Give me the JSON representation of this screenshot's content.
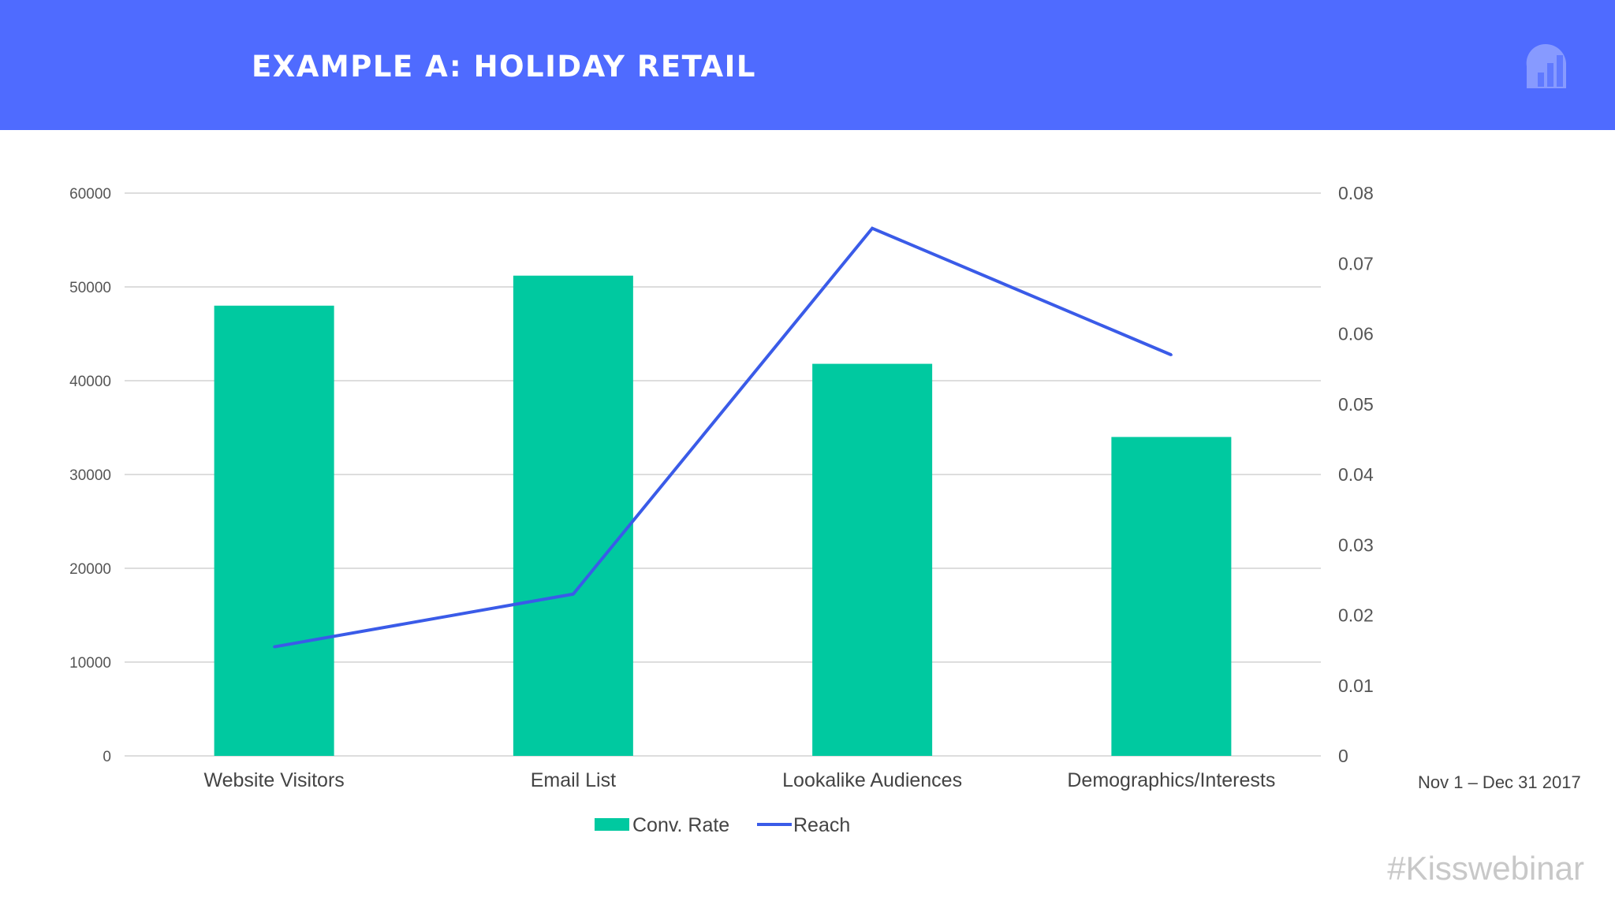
{
  "header": {
    "title": "EXAMPLE A: HOLIDAY RETAIL",
    "logo_icon": "bar-chart-cloud-icon"
  },
  "footer": {
    "date_range": "Nov 1 – Dec 31 2017",
    "hashtag": "#Kisswebinar"
  },
  "colors": {
    "header_bg": "#4f6bff",
    "bar": "#00c9a0",
    "line": "#3a5be8",
    "grid": "#dddddd"
  },
  "chart_data": {
    "type": "bar",
    "categories": [
      "Website Visitors",
      "Email List",
      "Lookalike Audiences",
      "Demographics/Interests"
    ],
    "series": [
      {
        "name": "Conv. Rate",
        "type": "bar",
        "axis": "left",
        "values": [
          48000,
          51200,
          41800,
          34000
        ]
      },
      {
        "name": "Reach",
        "type": "line",
        "axis": "right",
        "values": [
          0.0155,
          0.023,
          0.075,
          0.057
        ]
      }
    ],
    "y_left": {
      "ylim": [
        0,
        60000
      ],
      "ticks": [
        "0",
        "10000",
        "20000",
        "30000",
        "40000",
        "50000",
        "60000"
      ]
    },
    "y_right": {
      "ylim": [
        0,
        0.08
      ],
      "ticks": [
        "0",
        "0.01",
        "0.02",
        "0.03",
        "0.04",
        "0.05",
        "0.06",
        "0.07",
        "0.08"
      ]
    },
    "grid": true,
    "legend_position": "bottom"
  }
}
